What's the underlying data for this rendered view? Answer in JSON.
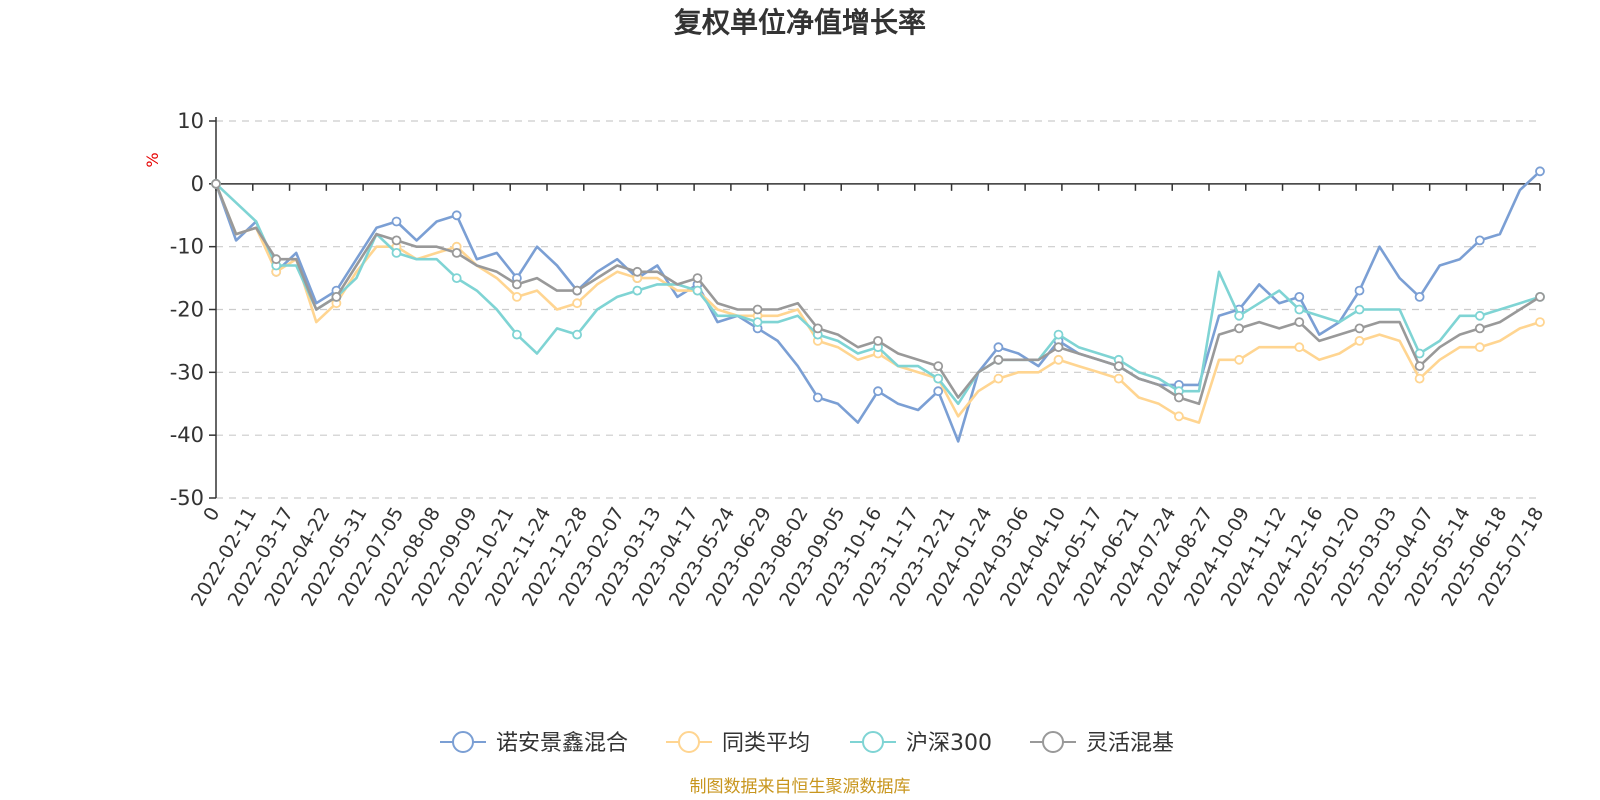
{
  "chart_data": {
    "type": "line",
    "title": "复权单位净值增长率",
    "ylabel": "%",
    "ylim": [
      -50,
      10
    ],
    "yticks": [
      10,
      0,
      -10,
      -20,
      -30,
      -40,
      -50
    ],
    "grid": true,
    "legend_position": "bottom",
    "source": "制图数据来自恒生聚源数据库",
    "x_tick_labels": [
      "0",
      "2022-02-11",
      "2022-03-17",
      "2022-04-22",
      "2022-05-31",
      "2022-07-05",
      "2022-08-08",
      "2022-09-09",
      "2022-10-21",
      "2022-11-24",
      "2022-12-28",
      "2023-02-07",
      "2023-03-13",
      "2023-04-17",
      "2023-05-24",
      "2023-06-29",
      "2023-08-02",
      "2023-09-05",
      "2023-10-16",
      "2023-11-17",
      "2023-12-21",
      "2024-01-24",
      "2024-03-06",
      "2024-04-10",
      "2024-05-17",
      "2024-06-21",
      "2024-07-24",
      "2024-08-27",
      "2024-10-09",
      "2024-11-12",
      "2024-12-16",
      "2025-01-20",
      "2025-03-03",
      "2025-04-07",
      "2025-05-14",
      "2025-06-18",
      "2025-07-18"
    ],
    "series": [
      {
        "name": "诺安景鑫混合",
        "color": "#7b9fd4",
        "values": [
          0,
          -9,
          -6,
          -14,
          -11,
          -19,
          -17,
          -12,
          -7,
          -6,
          -9,
          -6,
          -5,
          -12,
          -11,
          -15,
          -10,
          -13,
          -17,
          -14,
          -12,
          -15,
          -13,
          -18,
          -16,
          -22,
          -21,
          -23,
          -25,
          -29,
          -34,
          -35,
          -38,
          -33,
          -35,
          -36,
          -33,
          -41,
          -30,
          -26,
          -27,
          -29,
          -25,
          -27,
          -28,
          -29,
          -31,
          -32,
          -32,
          -32,
          -21,
          -20,
          -16,
          -19,
          -18,
          -24,
          -22,
          -17,
          -10,
          -15,
          -18,
          -13,
          -12,
          -9,
          -8,
          -1,
          2
        ]
      },
      {
        "name": "同类平均",
        "color": "#ffd591",
        "values": [
          0,
          -8,
          -7,
          -14,
          -12,
          -22,
          -19,
          -14,
          -10,
          -10,
          -12,
          -11,
          -10,
          -13,
          -15,
          -18,
          -17,
          -20,
          -19,
          -16,
          -14,
          -15,
          -15,
          -17,
          -17,
          -20,
          -21,
          -21,
          -21,
          -20,
          -25,
          -26,
          -28,
          -27,
          -29,
          -30,
          -31,
          -37,
          -33,
          -31,
          -30,
          -30,
          -28,
          -29,
          -30,
          -31,
          -34,
          -35,
          -37,
          -38,
          -28,
          -28,
          -26,
          -26,
          -26,
          -28,
          -27,
          -25,
          -24,
          -25,
          -31,
          -28,
          -26,
          -26,
          -25,
          -23,
          -22
        ]
      },
      {
        "name": "沪深300",
        "color": "#7fd4d4",
        "values": [
          0,
          -3,
          -6,
          -13,
          -13,
          -20,
          -18,
          -15,
          -8,
          -11,
          -12,
          -12,
          -15,
          -17,
          -20,
          -24,
          -27,
          -23,
          -24,
          -20,
          -18,
          -17,
          -16,
          -16,
          -17,
          -21,
          -21,
          -22,
          -22,
          -21,
          -24,
          -25,
          -27,
          -26,
          -29,
          -29,
          -31,
          -35,
          -30,
          -28,
          -28,
          -28,
          -24,
          -26,
          -27,
          -28,
          -30,
          -31,
          -33,
          -33,
          -14,
          -21,
          -19,
          -17,
          -20,
          -21,
          -22,
          -20,
          -20,
          -20,
          -27,
          -25,
          -21,
          -21,
          -20,
          -19,
          -18
        ]
      },
      {
        "name": "灵活混基",
        "color": "#999999",
        "values": [
          0,
          -8,
          -7,
          -12,
          -12,
          -20,
          -18,
          -13,
          -8,
          -9,
          -10,
          -10,
          -11,
          -13,
          -14,
          -16,
          -15,
          -17,
          -17,
          -15,
          -13,
          -14,
          -14,
          -16,
          -15,
          -19,
          -20,
          -20,
          -20,
          -19,
          -23,
          -24,
          -26,
          -25,
          -27,
          -28,
          -29,
          -34,
          -30,
          -28,
          -28,
          -28,
          -26,
          -27,
          -28,
          -29,
          -31,
          -32,
          -34,
          -35,
          -24,
          -23,
          -22,
          -23,
          -22,
          -25,
          -24,
          -23,
          -22,
          -22,
          -29,
          -26,
          -24,
          -23,
          -22,
          -20,
          -18
        ]
      }
    ]
  }
}
